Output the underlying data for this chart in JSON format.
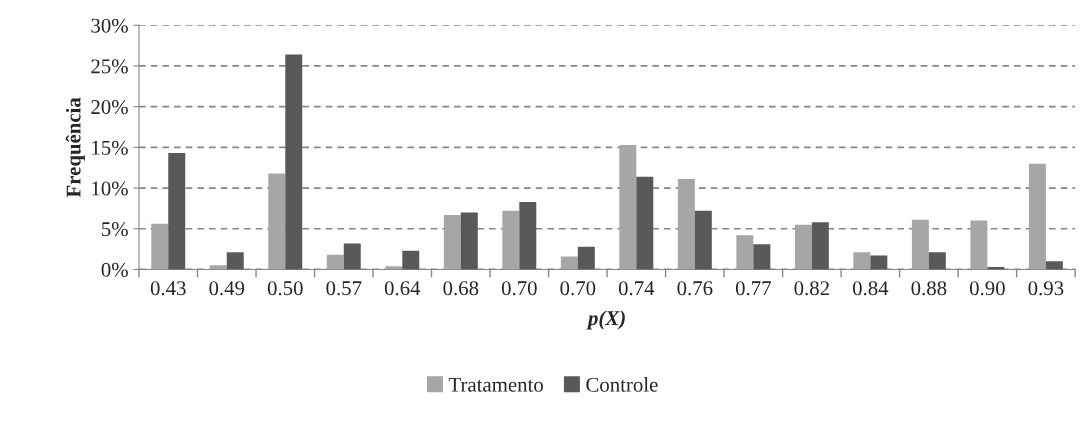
{
  "chart_data": {
    "type": "bar",
    "xlabel": "p(X)",
    "ylabel": "Frequência",
    "categories": [
      "0.43",
      "0.49",
      "0.50",
      "0.57",
      "0.64",
      "0.68",
      "0.70",
      "0.70",
      "0.74",
      "0.76",
      "0.77",
      "0.82",
      "0.84",
      "0.88",
      "0.90",
      "0.93"
    ],
    "series": [
      {
        "name": "Tratamento",
        "color": "#a6a6a6",
        "values": [
          5.6,
          0.5,
          11.8,
          1.8,
          0.4,
          6.7,
          7.2,
          1.6,
          15.3,
          11.1,
          4.2,
          5.5,
          2.1,
          6.1,
          6.0,
          13.0
        ]
      },
      {
        "name": "Controle",
        "color": "#595959",
        "values": [
          14.3,
          2.1,
          26.4,
          3.2,
          2.3,
          7.0,
          8.3,
          2.8,
          11.4,
          7.2,
          3.1,
          5.8,
          1.7,
          2.1,
          0.3,
          1.0
        ]
      }
    ],
    "ylim": [
      0,
      30
    ],
    "yticks": [
      {
        "value": 0,
        "label": "0%"
      },
      {
        "value": 5,
        "label": "5%"
      },
      {
        "value": 10,
        "label": "10%"
      },
      {
        "value": 15,
        "label": "15%"
      },
      {
        "value": 20,
        "label": "20%"
      },
      {
        "value": 25,
        "label": "25%"
      },
      {
        "value": 30,
        "label": "30%"
      }
    ],
    "grid": "y",
    "legend": "bottom"
  }
}
